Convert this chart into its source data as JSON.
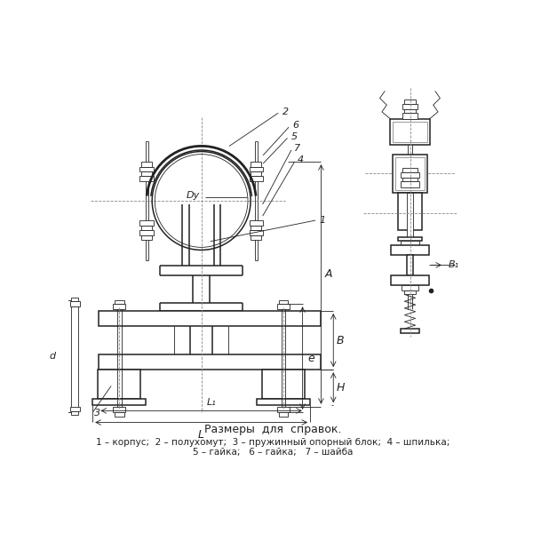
{
  "bg_color": "#ffffff",
  "line_color": "#222222",
  "dash_color": "#888888",
  "title_text": "Размеры  для  справок.",
  "legend_line1": "1 – корпус;  2 – полухомут;  3 – пружинный опорный блок;  4 – шпилька;",
  "legend_line2": "5 – гайка;   6 – гайка;   7 – шайба",
  "lw": 1.1,
  "lw_thin": 0.6,
  "lw_thick": 2.0
}
